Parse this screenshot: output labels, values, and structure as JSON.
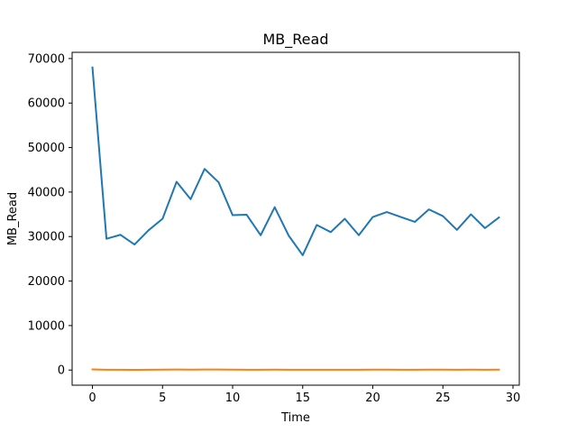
{
  "chart_data": {
    "type": "line",
    "title": "MB_Read",
    "xlabel": "Time",
    "ylabel": "MB_Read",
    "xlim": [
      -1.45,
      30.45
    ],
    "ylim": [
      -3400,
      71400
    ],
    "xticks": [
      0,
      5,
      10,
      15,
      20,
      25,
      30
    ],
    "yticks": [
      0,
      10000,
      20000,
      30000,
      40000,
      50000,
      60000,
      70000
    ],
    "grid": false,
    "series": [
      {
        "color": "#1f77b4",
        "x": [
          0,
          1,
          2,
          3,
          4,
          5,
          6,
          7,
          8,
          9,
          10,
          11,
          12,
          13,
          14,
          15,
          16,
          17,
          18,
          19,
          20,
          21,
          22,
          23,
          24,
          25,
          26,
          27,
          28,
          29
        ],
        "values": [
          68000,
          29500,
          30400,
          28200,
          31400,
          34000,
          42300,
          38400,
          45200,
          42200,
          34800,
          34900,
          30300,
          36600,
          30200,
          25800,
          32600,
          31000,
          34000,
          30300,
          34400,
          35500,
          34400,
          33300,
          36100,
          34600,
          31500,
          35000,
          31900,
          34300
        ]
      },
      {
        "color": "#ff7f0e",
        "x": [
          0,
          1,
          2,
          3,
          4,
          5,
          6,
          7,
          8,
          9,
          10,
          11,
          12,
          13,
          14,
          15,
          16,
          17,
          18,
          19,
          20,
          21,
          22,
          23,
          24,
          25,
          26,
          27,
          28,
          29
        ],
        "values": [
          150,
          80,
          60,
          50,
          70,
          90,
          110,
          100,
          120,
          110,
          90,
          80,
          70,
          90,
          80,
          60,
          80,
          70,
          80,
          70,
          90,
          90,
          80,
          80,
          90,
          90,
          80,
          90,
          80,
          90
        ]
      }
    ]
  }
}
